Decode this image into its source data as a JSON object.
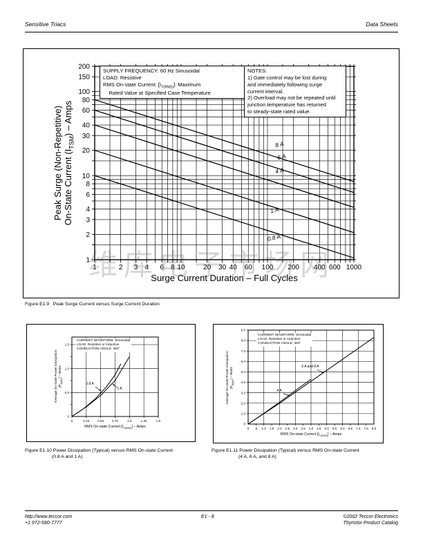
{
  "header": {
    "left": "Sensitive Triacs",
    "right": "Data Sheets"
  },
  "footer": {
    "left1": "http://www.teccor.com",
    "left2": "+1 972-580-7777",
    "center": "E1 - 8",
    "right1": "©2002 Teccor Electronics",
    "right2": "Thyristor Product Catalog"
  },
  "watermark": "维库电子市场网",
  "chart_data": [
    {
      "id": "figure-e1-9",
      "type": "line",
      "scale": "log-log",
      "grid": true,
      "caption": [
        "Figure E1.9   Peak Surge Current versus Surge Current Duration"
      ],
      "xlabel": "Surge Current Duration – Full Cycles",
      "ylabel_lines": [
        "Peak Surge (Non-Repetitive)",
        "On-State Current (I~TSM~) – Amps"
      ],
      "xlim": [
        1,
        1000
      ],
      "ylim": [
        1,
        200
      ],
      "x_ticks": [
        1,
        2,
        3,
        4,
        6,
        8,
        10,
        20,
        30,
        40,
        60,
        100,
        200,
        400,
        600,
        1000
      ],
      "y_ticks": [
        200,
        150,
        100,
        80,
        60,
        40,
        30,
        20,
        10,
        8,
        6,
        4,
        3,
        2,
        1
      ],
      "annotation_box_1": [
        "SUPPLY FREQUENCY: 60 Hz Sinusoidal",
        "LOAD: Resistive",
        "RMS On-state Current: [I~T(RMS)~]: Maximum",
        "    Rated Value at Specified Case Temperature"
      ],
      "annotation_box_2": [
        "NOTES:",
        "1) Gate control may be lost during",
        "and immediately following surge",
        "current interval.",
        "2) Overload may not be repeated until",
        "junction temperature has returned",
        "to steady-state rated value."
      ],
      "series": [
        {
          "name": "8 A",
          "points": [
            [
              1,
              80
            ],
            [
              1000,
              8.5
            ]
          ]
        },
        {
          "name": "6 A",
          "points": [
            [
              1,
              60
            ],
            [
              1000,
              6.3
            ]
          ]
        },
        {
          "name": "4 A",
          "points": [
            [
              1,
              40
            ],
            [
              1000,
              4.2
            ]
          ]
        },
        {
          "name": "1 A",
          "points": [
            [
              1,
              20
            ],
            [
              1000,
              2.1
            ]
          ]
        },
        {
          "name": "0.8 A",
          "points": [
            [
              1,
              10
            ],
            [
              1000,
              1.05
            ]
          ]
        }
      ]
    },
    {
      "id": "figure-e1-10",
      "type": "line",
      "scale": "linear",
      "grid": true,
      "caption": [
        "Figure E1.10 Power Dissipation (Typical) versus RMS On-state Current",
        "(0.8 A and 1 A)"
      ],
      "xlabel": "RMS On-state Current [I~T(RMS)~] – Amps",
      "ylabel_lines": [
        "Average On-state Power Dissipation",
        "[P~D(AV)~] – Watts"
      ],
      "xlim": [
        0,
        1.5
      ],
      "ylim": [
        0,
        1.66
      ],
      "annotation": [
        "CURRENT WAVEFORM: Sinusoidal",
        "LOAD: Resistive or Inductive",
        "CONDUCTION ANGLE: 360°"
      ],
      "x_tick_values": [
        0,
        0.25,
        0.5,
        0.75,
        1.0,
        1.25,
        1.5
      ],
      "x_tick_labels": [
        "0",
        "0.25",
        "0.50",
        "0.75",
        "1.0",
        "1.25",
        "1.5"
      ],
      "y_tick_values": [
        1.5,
        1.0,
        0.5,
        0
      ],
      "y_tick_labels": [
        "1.5",
        "1.0",
        "0.5",
        "0"
      ],
      "series": [
        {
          "name": "0.8 A",
          "points": [
            [
              0,
              0
            ],
            [
              0.2,
              0.16
            ],
            [
              0.4,
              0.36
            ],
            [
              0.6,
              0.62
            ],
            [
              0.75,
              0.87
            ],
            [
              0.85,
              1.1
            ]
          ]
        },
        {
          "name": "1 A",
          "points": [
            [
              0,
              0
            ],
            [
              0.25,
              0.2
            ],
            [
              0.5,
              0.44
            ],
            [
              0.75,
              0.75
            ],
            [
              1.0,
              1.25
            ]
          ]
        }
      ]
    },
    {
      "id": "figure-e1-11",
      "type": "line",
      "scale": "linear",
      "grid": true,
      "caption": [
        "Figure E1.11 Power Dissipation (Typical) versus RMS On-state Current",
        "(4 A, 6 A, and 8 A)"
      ],
      "xlabel": "RMS On-state Current [I~T(RMS)~] – Amps",
      "ylabel_lines": [
        "Average On-state Power Dissipation",
        "[P~D(AV)~] – Watts"
      ],
      "xlim": [
        0,
        8
      ],
      "ylim": [
        0,
        9
      ],
      "annotation": [
        "CURRENT WAVEFORM: Sinusoidal",
        "LOAD: Resistive or Inductive",
        "CONDUCTION ANGLE: 360°"
      ],
      "x_tick_values": [
        0,
        0.5,
        1.0,
        1.5,
        2.0,
        2.5,
        3.0,
        3.5,
        4.0,
        4.5,
        5.0,
        5.5,
        6.0,
        6.5,
        7.0,
        7.5,
        8.0
      ],
      "x_tick_labels": [
        "0",
        ".5",
        "1.0",
        "1.5",
        "2.0",
        "2.5",
        "3.0",
        "3.5",
        "4.0",
        "4.5",
        "5.0",
        "5.5",
        "6.0",
        "6.5",
        "7.0",
        "7.5",
        "8.0"
      ],
      "y_tick_values": [
        9,
        8,
        7,
        6,
        5,
        4,
        3,
        2,
        1,
        0
      ],
      "y_tick_labels": [
        "9.0",
        "8.0",
        "7.0",
        "6.0",
        "5.0",
        "4.0",
        "3.0",
        "2.0",
        "1.0",
        "0"
      ],
      "series": [
        {
          "name": "4 A",
          "points": [
            [
              0,
              0
            ],
            [
              1,
              1.02
            ],
            [
              2,
              2.1
            ],
            [
              3,
              3.2
            ],
            [
              4,
              4.3
            ]
          ]
        },
        {
          "name": "6 A and 8 A",
          "points": [
            [
              0,
              0
            ],
            [
              2,
              2.0
            ],
            [
              4,
              4.1
            ],
            [
              6,
              6.2
            ],
            [
              8,
              8.3
            ]
          ]
        }
      ]
    }
  ]
}
